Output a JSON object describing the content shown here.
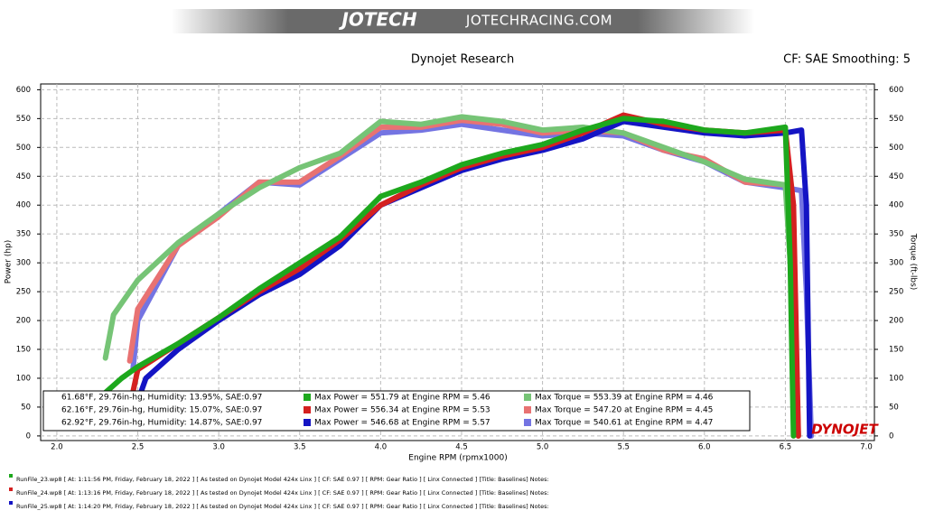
{
  "header": {
    "logo": "JOTECH",
    "site": "JOTECHRACING.COM"
  },
  "chart_data": {
    "type": "line",
    "title": "Dynojet Research",
    "subtitle": "CF: SAE Smoothing: 5",
    "xlabel": "Engine RPM (rpmx1000)",
    "ylabel": "Power (hp)",
    "y2label": "Torque (ft-lbs)",
    "brand": "DYNOJET",
    "xlim": [
      1.9,
      7.05
    ],
    "xticks": [
      {
        "value": 2,
        "label": "2.0"
      },
      2.5,
      {
        "value": 3,
        "label": "3.0"
      },
      3.5,
      {
        "value": 4,
        "label": "4.0"
      },
      4.5,
      {
        "value": 5,
        "label": "5.0"
      },
      5.5,
      {
        "value": 6,
        "label": "6.0"
      },
      6.5,
      {
        "value": 7,
        "label": "7.0"
      }
    ],
    "ylim": [
      -8,
      610
    ],
    "yticks": [
      0,
      50,
      100,
      150,
      200,
      250,
      300,
      350,
      400,
      450,
      500,
      550,
      600
    ],
    "y2lim": [
      -8,
      610
    ],
    "y2ticks": [
      0,
      50,
      100,
      150,
      200,
      250,
      300,
      350,
      400,
      450,
      500,
      550,
      600
    ],
    "grid": true,
    "conditions": [
      "61.68°F, 29.76in-hg, Humidity: 13.95%, SAE:0.97",
      "62.16°F, 29.76in-hg, Humidity: 15.07%, SAE:0.97",
      "62.92°F, 29.76in-hg, Humidity: 14.87%, SAE:0.97"
    ],
    "files": [
      "RunFile_23.wp8 [ At: 1:11:56 PM, Friday, February 18, 2022 ] [ As tested on Dynojet Model 424x Linx ] [ CF: SAE 0.97 ] [ RPM: Gear Ratio ] [ Linx Connected ] [Title: Baselines]  Notes:",
      "RunFile_24.wp8 [ At: 1:13:16 PM, Friday, February 18, 2022 ] [ As tested on Dynojet Model 424x Linx ] [ CF: SAE 0.97 ] [ RPM: Gear Ratio ] [ Linx Connected ] [Title: Baselines]  Notes:",
      "RunFile_25.wp8 [ At: 1:14:20 PM, Friday, February 18, 2022 ] [ As tested on Dynojet Model 424x Linx ] [ CF: SAE 0.97 ] [ RPM: Gear Ratio ] [ Linx Connected ] [Title: Baselines]  Notes:"
    ],
    "series": [
      {
        "name": "Max Power = 551.79 at Engine RPM = 5.46",
        "color": "#1da81d",
        "x": [
          2.3,
          2.4,
          2.5,
          2.75,
          3.0,
          3.25,
          3.5,
          3.75,
          4.0,
          4.25,
          4.5,
          4.75,
          5.0,
          5.25,
          5.5,
          5.75,
          6.0,
          6.25,
          6.5,
          6.53,
          6.55
        ],
        "values": [
          75,
          100,
          120,
          160,
          205,
          255,
          300,
          345,
          415,
          440,
          470,
          490,
          505,
          530,
          550,
          545,
          530,
          525,
          535,
          300,
          0
        ]
      },
      {
        "name": "Max Power = 556.34 at Engine RPM = 5.53",
        "color": "#d42020",
        "x": [
          2.45,
          2.5,
          2.75,
          3.0,
          3.25,
          3.5,
          3.75,
          4.0,
          4.25,
          4.5,
          4.75,
          5.0,
          5.25,
          5.5,
          5.75,
          6.0,
          6.25,
          6.5,
          6.55,
          6.58
        ],
        "values": [
          50,
          115,
          160,
          205,
          250,
          290,
          340,
          400,
          435,
          465,
          485,
          500,
          525,
          556,
          540,
          530,
          525,
          530,
          400,
          0
        ]
      },
      {
        "name": "Max Power = 546.68 at Engine RPM = 5.57",
        "color": "#1414c4",
        "x": [
          2.5,
          2.55,
          2.75,
          3.0,
          3.25,
          3.5,
          3.75,
          4.0,
          4.25,
          4.5,
          4.75,
          5.0,
          5.25,
          5.5,
          5.75,
          6.0,
          6.25,
          6.5,
          6.6,
          6.63,
          6.65
        ],
        "values": [
          60,
          100,
          150,
          200,
          245,
          280,
          330,
          400,
          430,
          460,
          480,
          495,
          515,
          545,
          535,
          525,
          520,
          525,
          530,
          400,
          0
        ]
      },
      {
        "name": "Max Torque = 553.39 at Engine RPM = 4.46",
        "color": "#76c476",
        "axis": "y2",
        "x": [
          2.3,
          2.35,
          2.5,
          2.75,
          3.0,
          3.25,
          3.5,
          3.75,
          4.0,
          4.25,
          4.5,
          4.75,
          5.0,
          5.25,
          5.5,
          5.75,
          6.0,
          6.25,
          6.5,
          6.53,
          6.56,
          6.58
        ],
        "values": [
          135,
          210,
          270,
          335,
          385,
          430,
          465,
          490,
          545,
          540,
          553,
          545,
          530,
          535,
          525,
          500,
          475,
          445,
          435,
          300,
          100,
          0
        ]
      },
      {
        "name": "Max Torque = 547.20 at Engine RPM = 4.45",
        "color": "#e87272",
        "axis": "y2",
        "x": [
          2.45,
          2.5,
          2.75,
          3.0,
          3.25,
          3.5,
          3.75,
          4.0,
          4.25,
          4.5,
          4.75,
          5.0,
          5.25,
          5.5,
          5.75,
          6.0,
          6.25,
          6.5,
          6.55,
          6.58
        ],
        "values": [
          130,
          220,
          330,
          380,
          440,
          440,
          485,
          535,
          535,
          547,
          540,
          525,
          530,
          525,
          495,
          480,
          440,
          435,
          300,
          0
        ]
      },
      {
        "name": "Max Torque = 540.61 at Engine RPM = 4.47",
        "color": "#7474e2",
        "axis": "y2",
        "x": [
          2.47,
          2.5,
          2.75,
          3.0,
          3.25,
          3.5,
          3.75,
          4.0,
          4.25,
          4.5,
          4.75,
          5.0,
          5.25,
          5.5,
          5.75,
          6.0,
          6.25,
          6.5,
          6.6,
          6.63,
          6.66
        ],
        "values": [
          115,
          200,
          330,
          385,
          440,
          435,
          480,
          525,
          530,
          540,
          530,
          520,
          525,
          520,
          495,
          475,
          440,
          430,
          425,
          250,
          0
        ]
      }
    ]
  }
}
